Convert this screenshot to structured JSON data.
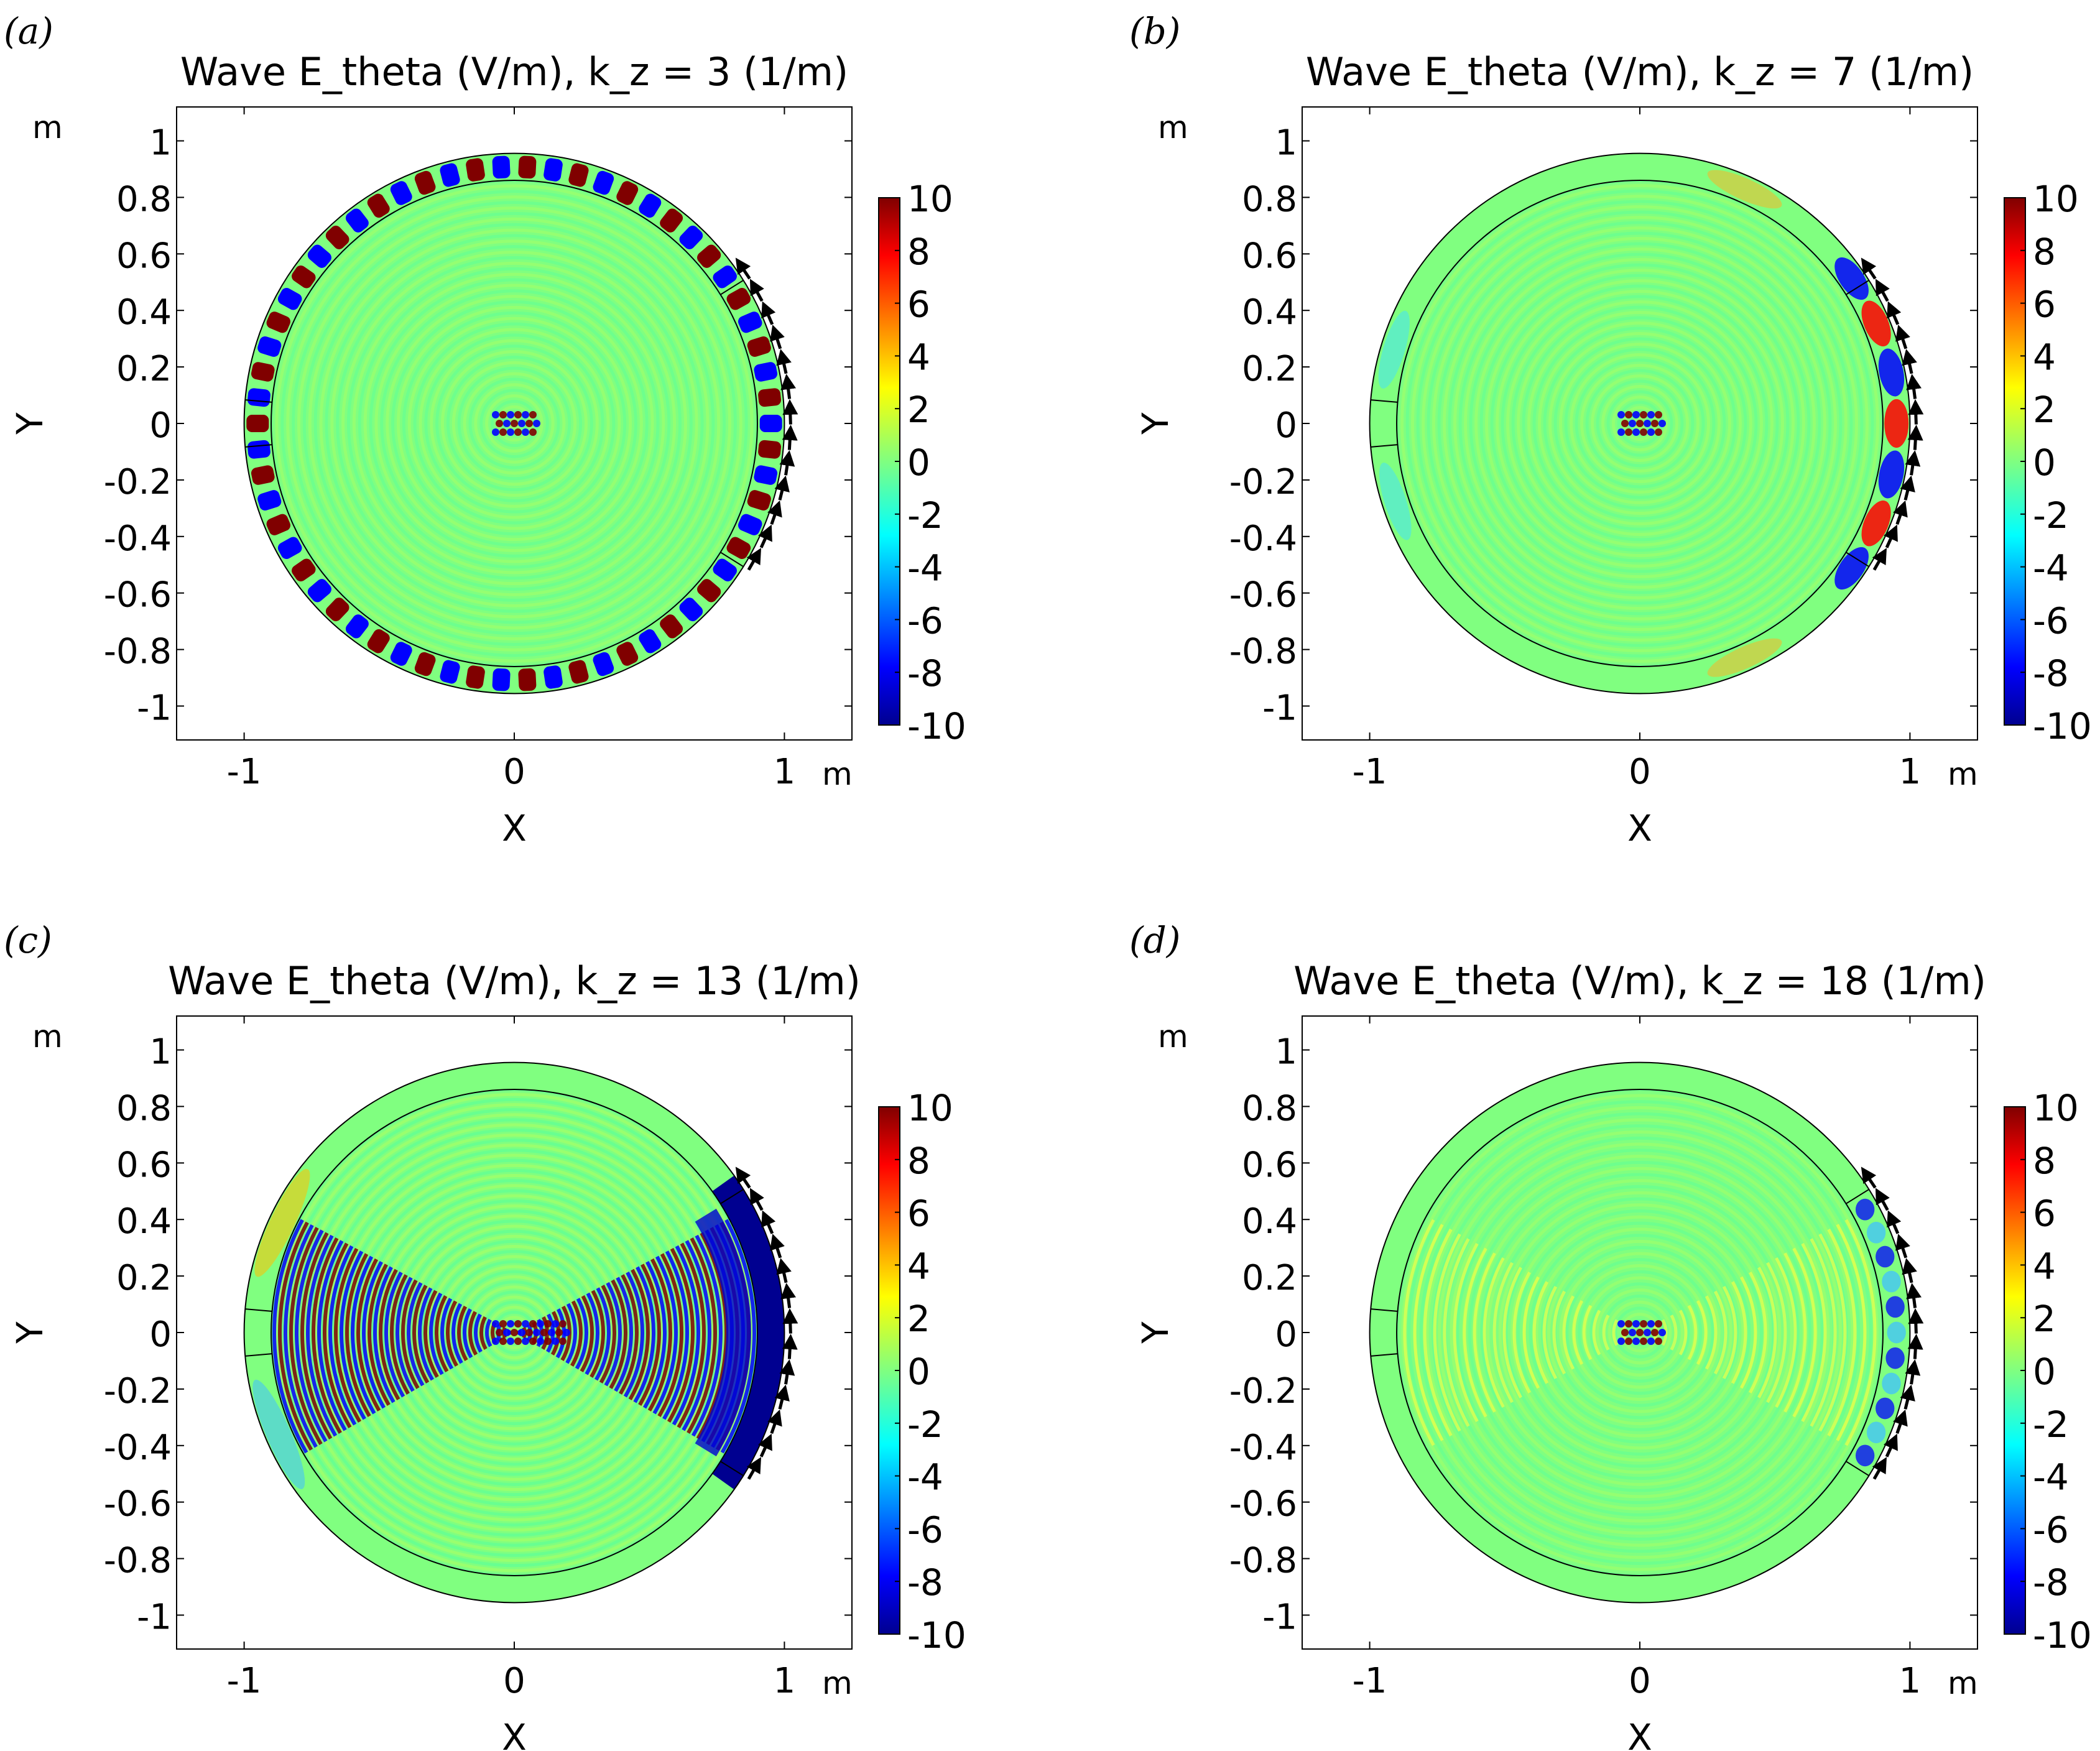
{
  "chart_data": [
    {
      "type": "heatmap",
      "panel_label": "(a)",
      "title": "Wave E_theta (V/m), k_z = 3 (1/m)",
      "k_z": 3,
      "xlabel": "X",
      "ylabel": "Y",
      "x_unit": "m",
      "y_unit": "m",
      "xlim": [
        -1.25,
        1.25
      ],
      "ylim": [
        -1.12,
        1.12
      ],
      "xticks": [
        "-1",
        "0",
        "1"
      ],
      "yticks": [
        "1",
        "0.8",
        "0.6",
        "0.4",
        "0.2",
        "0",
        "-0.2",
        "-0.4",
        "-0.6",
        "-0.8",
        "-1"
      ],
      "colorbar": {
        "min": -10,
        "max": 10,
        "ticks": [
          "10",
          "8",
          "6",
          "4",
          "2",
          "0",
          "-2",
          "-4",
          "-6",
          "-8",
          "-10"
        ]
      },
      "outer_radius": 1.0,
      "inner_radius": 0.9,
      "antenna_angle_range_deg": [
        -32,
        32
      ],
      "field_pattern": "edge-mode"
    },
    {
      "type": "heatmap",
      "panel_label": "(b)",
      "title": "Wave E_theta (V/m), k_z = 7 (1/m)",
      "k_z": 7,
      "xlabel": "X",
      "ylabel": "Y",
      "x_unit": "m",
      "y_unit": "m",
      "xlim": [
        -1.25,
        1.25
      ],
      "ylim": [
        -1.12,
        1.12
      ],
      "xticks": [
        "-1",
        "0",
        "1"
      ],
      "yticks": [
        "1",
        "0.8",
        "0.6",
        "0.4",
        "0.2",
        "0",
        "-0.2",
        "-0.4",
        "-0.6",
        "-0.8",
        "-1"
      ],
      "colorbar": {
        "min": -10,
        "max": 10,
        "ticks": [
          "10",
          "8",
          "6",
          "4",
          "2",
          "0",
          "-2",
          "-4",
          "-6",
          "-8",
          "-10"
        ]
      },
      "outer_radius": 1.0,
      "inner_radius": 0.9,
      "antenna_angle_range_deg": [
        -32,
        32
      ],
      "field_pattern": "localized-antenna"
    },
    {
      "type": "heatmap",
      "panel_label": "(c)",
      "title": "Wave E_theta (V/m), k_z = 13 (1/m)",
      "k_z": 13,
      "xlabel": "X",
      "ylabel": "Y",
      "x_unit": "m",
      "y_unit": "m",
      "xlim": [
        -1.25,
        1.25
      ],
      "ylim": [
        -1.12,
        1.12
      ],
      "xticks": [
        "-1",
        "0",
        "1"
      ],
      "yticks": [
        "1",
        "0.8",
        "0.6",
        "0.4",
        "0.2",
        "0",
        "-0.2",
        "-0.4",
        "-0.6",
        "-0.8",
        "-1"
      ],
      "colorbar": {
        "min": -10,
        "max": 10,
        "ticks": [
          "10",
          "8",
          "6",
          "4",
          "2",
          "0",
          "-2",
          "-4",
          "-6",
          "-8",
          "-10"
        ]
      },
      "outer_radius": 1.0,
      "inner_radius": 0.9,
      "antenna_angle_range_deg": [
        -32,
        32
      ],
      "field_pattern": "bowtie"
    },
    {
      "type": "heatmap",
      "panel_label": "(d)",
      "title": "Wave E_theta (V/m), k_z = 18 (1/m)",
      "k_z": 18,
      "xlabel": "X",
      "ylabel": "Y",
      "x_unit": "m",
      "y_unit": "m",
      "xlim": [
        -1.25,
        1.25
      ],
      "ylim": [
        -1.12,
        1.12
      ],
      "xticks": [
        "-1",
        "0",
        "1"
      ],
      "yticks": [
        "1",
        "0.8",
        "0.6",
        "0.4",
        "0.2",
        "0",
        "-0.2",
        "-0.4",
        "-0.6",
        "-0.8",
        "-1"
      ],
      "colorbar": {
        "min": -10,
        "max": 10,
        "ticks": [
          "10",
          "8",
          "6",
          "4",
          "2",
          "0",
          "-2",
          "-4",
          "-6",
          "-8",
          "-10"
        ]
      },
      "outer_radius": 1.0,
      "inner_radius": 0.9,
      "antenna_angle_range_deg": [
        -32,
        32
      ],
      "field_pattern": "weak-lens"
    }
  ],
  "colormap": [
    "#00008f",
    "#0000ff",
    "#00ffff",
    "#80ff80",
    "#ffff00",
    "#ff0000",
    "#800000"
  ],
  "background_field_color": "#80ff80"
}
